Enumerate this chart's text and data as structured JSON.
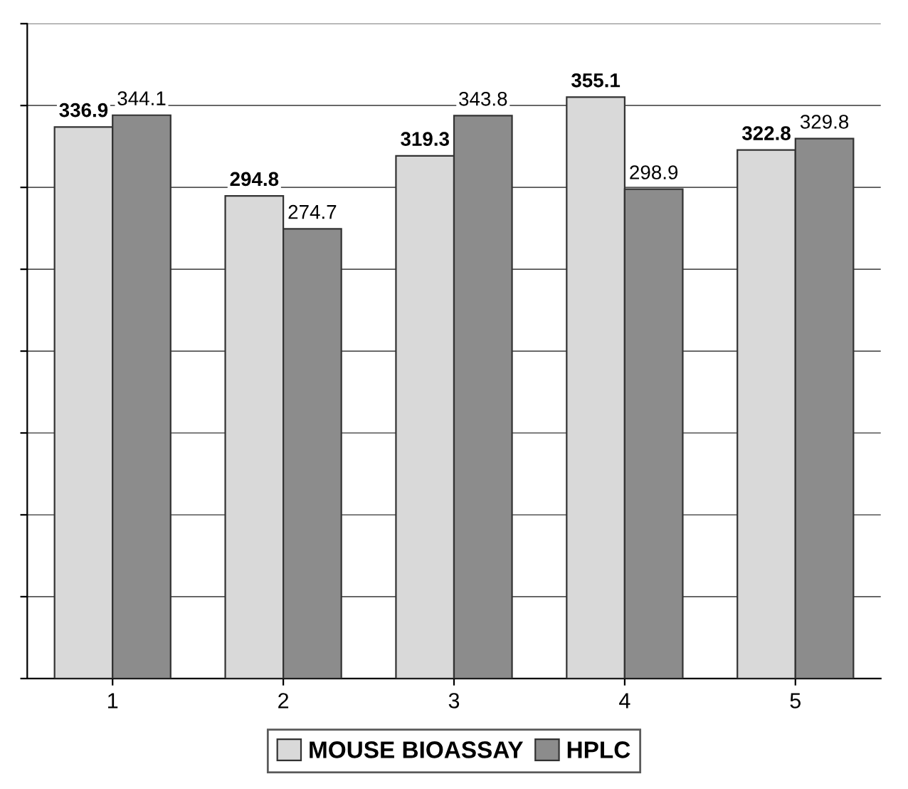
{
  "chart_data": {
    "type": "bar",
    "categories": [
      "1",
      "2",
      "3",
      "4",
      "5"
    ],
    "series": [
      {
        "name": "MOUSE BIOASSAY",
        "color": "#d9d9d9",
        "values": [
          336.9,
          294.8,
          319.3,
          355.1,
          322.8
        ]
      },
      {
        "name": "HPLC",
        "color": "#8c8c8c",
        "values": [
          344.1,
          274.7,
          343.8,
          298.9,
          329.8
        ]
      }
    ],
    "ylim": [
      0,
      400
    ],
    "yticks": [
      {
        "value": 0,
        "label": null
      },
      {
        "value": 50,
        "label": null
      },
      {
        "value": 100,
        "label": null
      },
      {
        "value": 150,
        "label": null
      },
      {
        "value": 200,
        "label": null
      },
      {
        "value": 250,
        "label": null
      },
      {
        "value": 300,
        "label": null
      },
      {
        "value": 350,
        "label": null
      },
      {
        "value": 400,
        "label": null
      }
    ],
    "tick_labels": "x",
    "grid": "y",
    "legend": "bottom",
    "data_labels": true
  }
}
